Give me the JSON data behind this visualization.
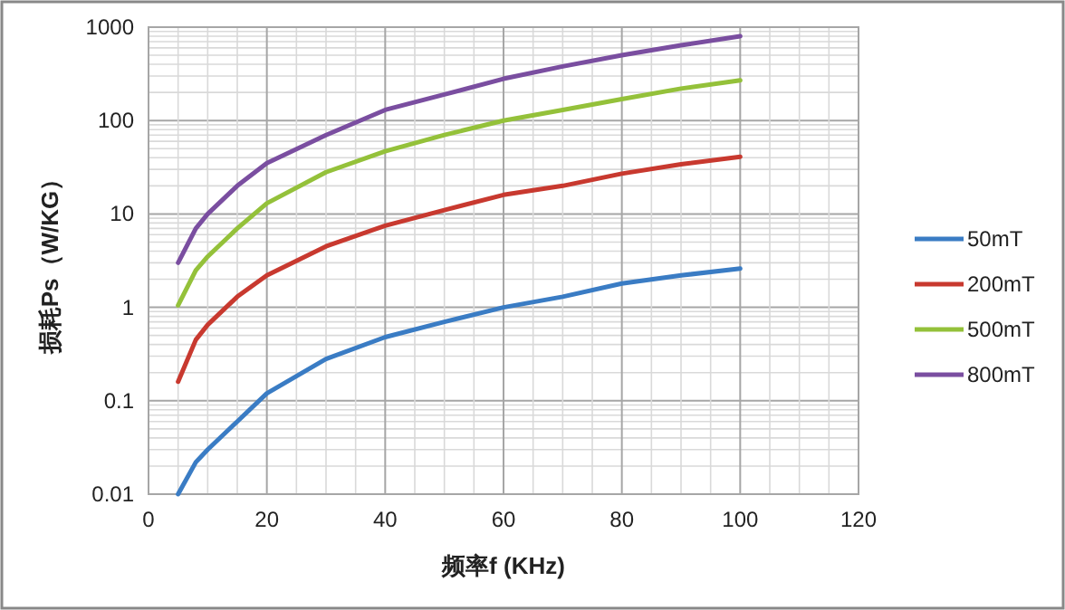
{
  "chart_data": {
    "type": "line",
    "xlabel": "频率f (KHz)",
    "ylabel": "损耗Ps（W/KG）",
    "log": "y",
    "grid": true,
    "legend": "right",
    "line_style": "solid",
    "marker": "none",
    "xlim": [
      0,
      120
    ],
    "xticks": [
      0,
      20,
      40,
      60,
      80,
      100,
      120
    ],
    "ylim": [
      0.01,
      1000
    ],
    "yticks": [
      0.01,
      0.1,
      1,
      10,
      100,
      1000
    ],
    "x": [
      5,
      8,
      10,
      15,
      20,
      30,
      40,
      50,
      60,
      70,
      80,
      90,
      100
    ],
    "series": [
      {
        "name": "50mT",
        "color": "#3a7cc4",
        "values": [
          0.01,
          0.022,
          0.03,
          0.06,
          0.12,
          0.28,
          0.48,
          0.7,
          1.0,
          1.3,
          1.8,
          2.2,
          2.6
        ]
      },
      {
        "name": "200mT",
        "color": "#c8392f",
        "values": [
          0.16,
          0.45,
          0.65,
          1.3,
          2.2,
          4.5,
          7.5,
          11,
          16,
          20,
          27,
          34,
          41
        ]
      },
      {
        "name": "500mT",
        "color": "#94c13a",
        "values": [
          1.05,
          2.5,
          3.5,
          7,
          13,
          28,
          47,
          70,
          100,
          130,
          170,
          220,
          270
        ]
      },
      {
        "name": "800mT",
        "color": "#7a4ea0",
        "values": [
          3,
          7,
          10,
          20,
          35,
          70,
          130,
          190,
          280,
          380,
          500,
          640,
          800
        ]
      }
    ]
  }
}
